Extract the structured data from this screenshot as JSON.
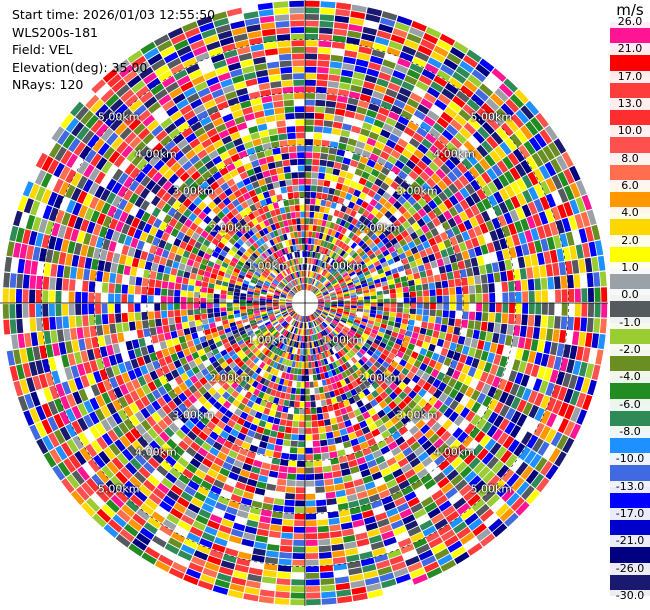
{
  "info": {
    "start_time": "Start time: 2026/01/03 12:55:50",
    "site": "WLS200s-181",
    "field": "Field: VEL",
    "elevation": "Elevation(deg): 35.00",
    "nrays": "NRays: 120"
  },
  "chart_data": {
    "type": "heatmap",
    "subtype": "ppi-polar",
    "field": "VEL",
    "unit": "m/s",
    "nrays": 120,
    "elevation_deg": 35.0,
    "range_rings": [
      {
        "label": "1.00km",
        "km": 1
      },
      {
        "label": "2.00km",
        "km": 2
      },
      {
        "label": "3.00km",
        "km": 3
      },
      {
        "label": "4.00km",
        "km": 4
      },
      {
        "label": "5.00km",
        "km": 5
      }
    ],
    "max_range_km": 5.75,
    "colorbar": {
      "ticks": [
        "26.0",
        "21.0",
        "17.0",
        "13.0",
        "10.0",
        "8.0",
        "6.0",
        "4.0",
        "2.0",
        "1.0",
        "0.0",
        "-1.0",
        "-2.0",
        "-4.0",
        "-6.0",
        "-8.0",
        "-10.0",
        "-13.0",
        "-17.0",
        "-21.0",
        "-26.0",
        "-30.0"
      ],
      "colors": [
        "#ff1493",
        "#ff0000",
        "#ff3c3c",
        "#ff2e2e",
        "#ff5050",
        "#ff6f4f",
        "#ff9800",
        "#ffd700",
        "#ffff00",
        "#9aa2a8",
        "#555a5e",
        "#9acd32",
        "#6b8e23",
        "#228b22",
        "#2e8b57",
        "#1e90ff",
        "#4169e1",
        "#0000ff",
        "#0000cd",
        "#000080",
        "#191970"
      ]
    }
  }
}
